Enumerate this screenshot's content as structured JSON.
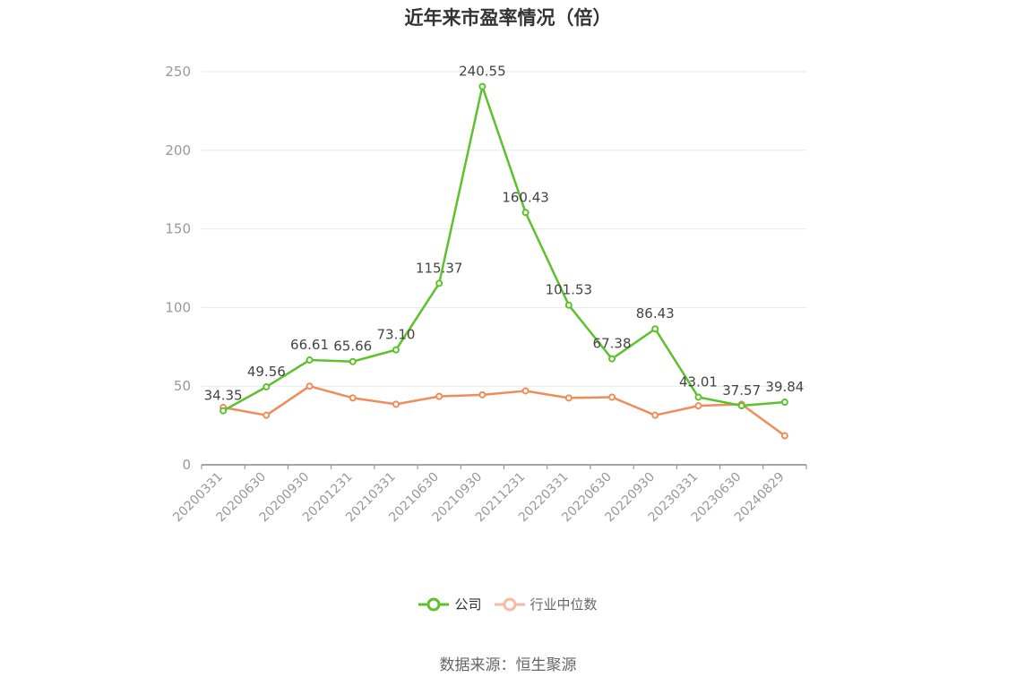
{
  "title": "近年来市盈率情况（倍）",
  "source": "数据来源：恒生聚源",
  "colors": {
    "company": "#5cc22b",
    "industry": "#f08c5a",
    "grid": "#e6e8ef",
    "axis": "#888888",
    "tick_text": "#999999"
  },
  "chart_data": {
    "type": "line",
    "title": "近年来市盈率情况（倍）",
    "xlabel": "",
    "ylabel": "",
    "ylim": [
      0,
      250
    ],
    "yticks": [
      0,
      50,
      100,
      150,
      200,
      250
    ],
    "grid": true,
    "legend_position": "bottom-center",
    "categories": [
      "20200331",
      "20200630",
      "20200930",
      "20201231",
      "20210331",
      "20210630",
      "20210930",
      "20211231",
      "20220331",
      "20220630",
      "20220930",
      "20230331",
      "20230630",
      "20240829"
    ],
    "series": [
      {
        "name": "公司",
        "color": "#5cc22b",
        "values": [
          34.35,
          49.56,
          66.61,
          65.66,
          73.1,
          115.37,
          240.55,
          160.43,
          101.53,
          67.38,
          86.43,
          43.01,
          37.57,
          39.84
        ],
        "labels": [
          "34.35",
          "49.56",
          "66.61",
          "65.66",
          "73.10",
          "115.37",
          "240.55",
          "160.43",
          "101.53",
          "67.38",
          "86.43",
          "43.01",
          "37.57",
          "39.84"
        ]
      },
      {
        "name": "行业中位数",
        "color": "#f08c5a",
        "values": [
          36.5,
          31.5,
          50.0,
          42.5,
          38.5,
          43.5,
          44.5,
          47.0,
          42.5,
          43.0,
          31.5,
          37.5,
          38.5,
          18.5
        ]
      }
    ]
  }
}
